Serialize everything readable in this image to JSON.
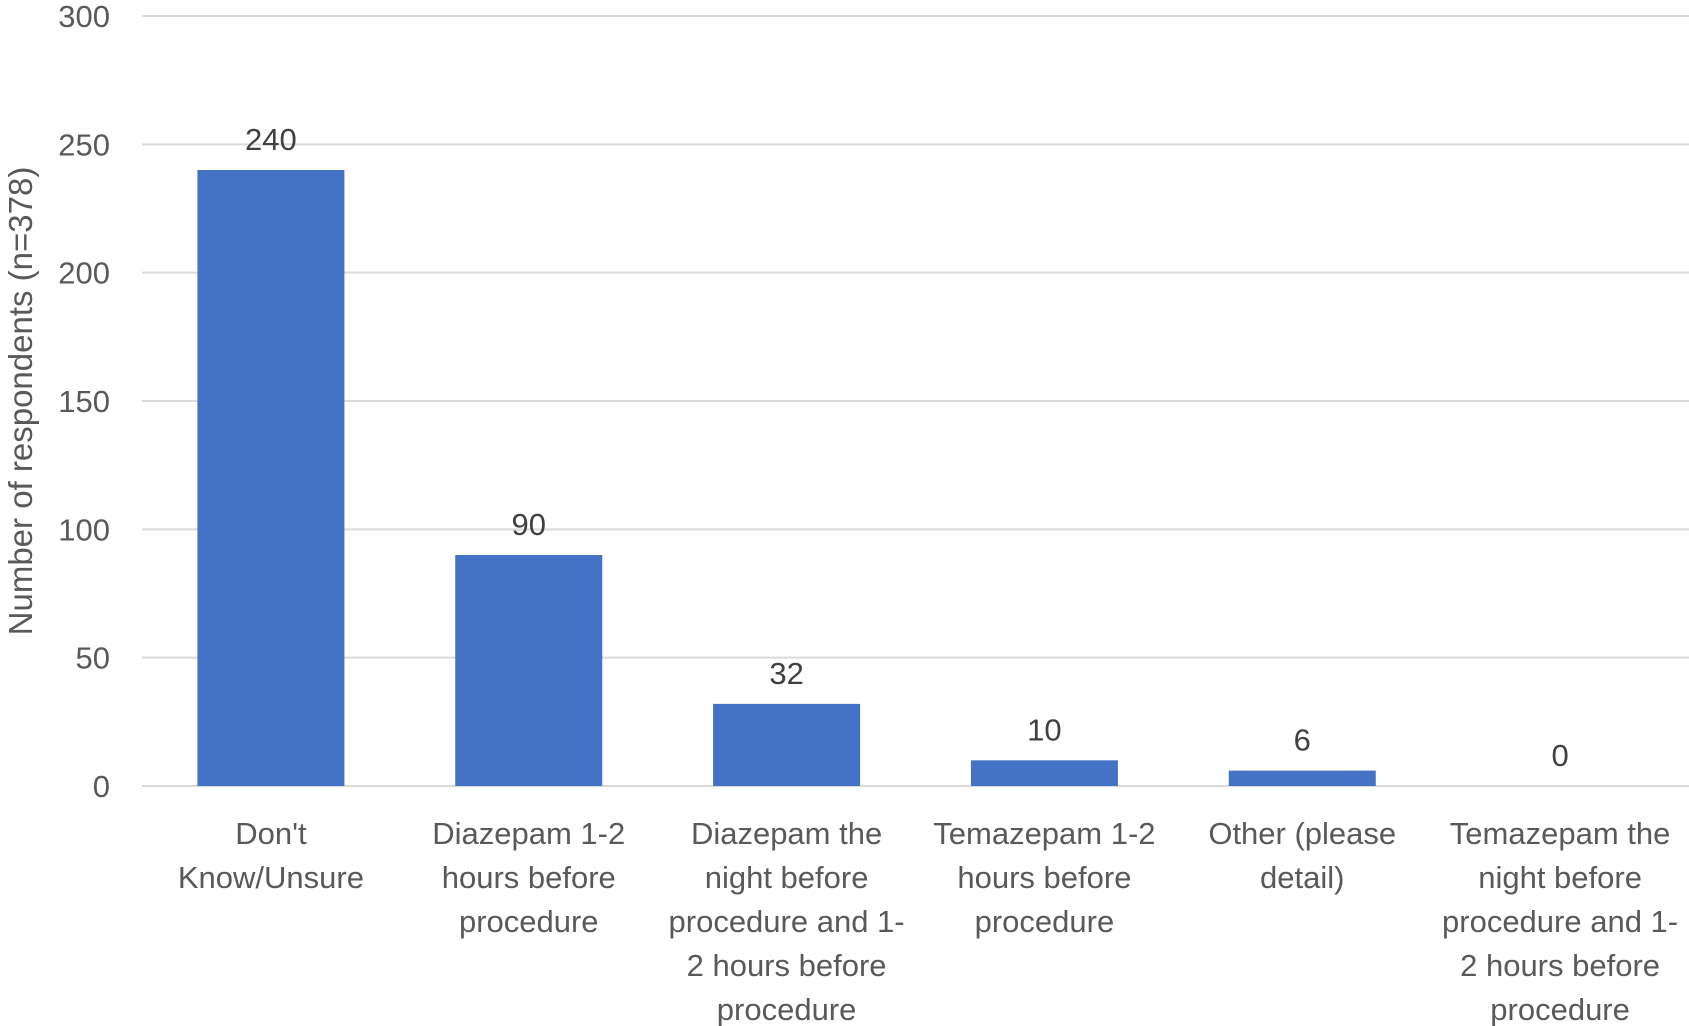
{
  "chart_data": {
    "type": "bar",
    "title": "",
    "xlabel": "",
    "ylabel": "Number of respondents (n=378)",
    "ylim": [
      0,
      300
    ],
    "yticks": [
      0,
      50,
      100,
      150,
      200,
      250,
      300
    ],
    "grid": true,
    "legend": "none",
    "bar_color": "#4472c4",
    "categories": [
      [
        "Don't",
        "Know/Unsure"
      ],
      [
        "Diazepam 1-2",
        "hours before",
        "procedure"
      ],
      [
        "Diazepam the",
        "night before",
        "procedure and 1-",
        "2 hours before",
        "procedure"
      ],
      [
        "Temazepam 1-2",
        "hours before",
        "procedure"
      ],
      [
        "Other (please",
        "detail)"
      ],
      [
        "Temazepam the",
        "night before",
        "procedure and 1-",
        "2 hours before",
        "procedure"
      ]
    ],
    "values": [
      240,
      90,
      32,
      10,
      6,
      0
    ],
    "data_labels": [
      "240",
      "90",
      "32",
      "10",
      "6",
      "0"
    ]
  }
}
